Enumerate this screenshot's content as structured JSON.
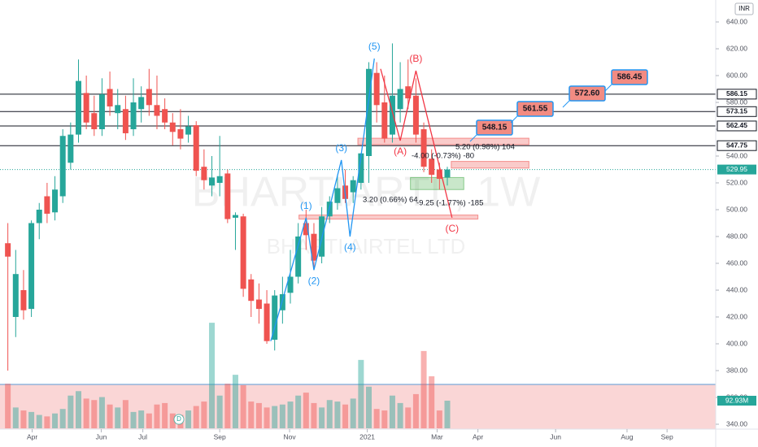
{
  "chart_data": {
    "type": "candlestick",
    "watermark": "BHARTIARTL, 1W",
    "subwatermark": "BHARTI AIRTEL LTD",
    "currency": "INR",
    "dividend_marker": "D",
    "categories": [
      null,
      null,
      null,
      null,
      null,
      null,
      null,
      null,
      null,
      null,
      null,
      null,
      null,
      null,
      null,
      null,
      null,
      null,
      null,
      null,
      null,
      null,
      null,
      null,
      null,
      null,
      null,
      null,
      null,
      null,
      null,
      null,
      null,
      null,
      null,
      null,
      null,
      null,
      null,
      null,
      null,
      null,
      null,
      null,
      null,
      null,
      null,
      null,
      null,
      null,
      null,
      null,
      null,
      null,
      null,
      null,
      null
    ],
    "open": [
      475,
      420,
      440,
      426,
      490,
      510,
      498,
      510,
      535,
      556,
      587,
      572,
      560,
      590,
      572,
      575,
      560,
      575,
      590,
      578,
      575,
      565,
      560,
      556,
      563,
      532,
      518,
      520,
      527,
      494,
      495,
      448,
      433,
      430,
      403,
      425,
      438,
      450,
      490,
      482,
      465,
      495,
      505,
      518,
      513,
      520,
      540,
      602,
      580,
      556,
      575,
      592,
      585,
      560,
      538,
      530,
      524
    ],
    "high": [
      490,
      470,
      455,
      492,
      505,
      520,
      525,
      560,
      565,
      612,
      600,
      585,
      598,
      603,
      590,
      585,
      598,
      592,
      605,
      600,
      583,
      572,
      575,
      570,
      566,
      545,
      540,
      555,
      530,
      498,
      497,
      452,
      445,
      440,
      440,
      450,
      470,
      490,
      500,
      490,
      502,
      510,
      525,
      530,
      525,
      542,
      610,
      610,
      600,
      624,
      610,
      612,
      598,
      565,
      545,
      535,
      532
    ],
    "low": [
      380,
      405,
      418,
      420,
      478,
      490,
      492,
      505,
      530,
      550,
      560,
      555,
      555,
      570,
      560,
      552,
      555,
      565,
      570,
      560,
      560,
      548,
      545,
      550,
      525,
      515,
      510,
      510,
      490,
      470,
      435,
      420,
      415,
      400,
      395,
      415,
      430,
      445,
      470,
      455,
      460,
      490,
      500,
      505,
      505,
      515,
      520,
      565,
      550,
      550,
      565,
      575,
      550,
      528,
      520,
      515,
      518
    ],
    "close": [
      465,
      452,
      425,
      490,
      500,
      497,
      515,
      555,
      556,
      596,
      565,
      560,
      586,
      577,
      578,
      557,
      580,
      584,
      578,
      570,
      565,
      558,
      553,
      562,
      529,
      522,
      524,
      525,
      493,
      496,
      441,
      432,
      426,
      402,
      436,
      437,
      450,
      480,
      481,
      462,
      495,
      506,
      516,
      508,
      522,
      542,
      605,
      578,
      553,
      585,
      590,
      583,
      556,
      532,
      526,
      523,
      529.95
    ],
    "volume": [
      150,
      70,
      60,
      55,
      45,
      40,
      50,
      65,
      110,
      125,
      100,
      95,
      105,
      80,
      70,
      95,
      55,
      60,
      50,
      80,
      85,
      50,
      45,
      60,
      75,
      90,
      355,
      110,
      150,
      180,
      145,
      90,
      85,
      70,
      75,
      80,
      90,
      110,
      120,
      85,
      70,
      95,
      90,
      80,
      100,
      230,
      140,
      65,
      60,
      110,
      85,
      70,
      115,
      260,
      175,
      60,
      92.93
    ],
    "volume_label": "92.93M",
    "up_color": "#26a69a",
    "down_color": "#ef5350",
    "xlim": [
      -1,
      90.2
    ],
    "xticks": [
      {
        "value": 3.1,
        "label": "Apr"
      },
      {
        "value": 11.9,
        "label": "Jun"
      },
      {
        "value": 17.2,
        "label": "Jul"
      },
      {
        "value": 27,
        "label": "Sep"
      },
      {
        "value": 35.9,
        "label": "Nov"
      },
      {
        "value": 45.8,
        "label": "2021"
      },
      {
        "value": 54.7,
        "label": "Mar"
      },
      {
        "value": 59.9,
        "label": "Apr"
      },
      {
        "value": 69.8,
        "label": "Jun"
      },
      {
        "value": 78.9,
        "label": "Aug"
      },
      {
        "value": 84,
        "label": "Sep"
      }
    ],
    "ylim": [
      340,
      640
    ],
    "yticks": [
      {
        "value": 340,
        "label": "340.00"
      },
      {
        "value": 360,
        "label": "360.00"
      },
      {
        "value": 380,
        "label": "380.00"
      },
      {
        "value": 400,
        "label": "400.00"
      },
      {
        "value": 420,
        "label": "420.00"
      },
      {
        "value": 440,
        "label": "440.00"
      },
      {
        "value": 460,
        "label": "460.00"
      },
      {
        "value": 480,
        "label": "480.00"
      },
      {
        "value": 500,
        "label": "500.00"
      },
      {
        "value": 520,
        "label": "520.00"
      },
      {
        "value": 540,
        "label": "540.00"
      },
      {
        "value": 560,
        "label": "560.00"
      },
      {
        "value": 580,
        "label": "580.00"
      },
      {
        "value": 600,
        "label": "600.00"
      },
      {
        "value": 620,
        "label": "620.00"
      },
      {
        "value": 640,
        "label": "640.00"
      }
    ],
    "last_price": {
      "value": 529.95,
      "label": "529.95"
    },
    "levels": [
      {
        "value": 586.15,
        "label": "586.15"
      },
      {
        "value": 573.15,
        "label": "573.15"
      },
      {
        "value": 562.45,
        "label": "562.45"
      },
      {
        "value": 547.75,
        "label": "547.75"
      }
    ],
    "targets": [
      "548.15",
      "561.55",
      "572.60",
      "586.45"
    ],
    "zones": [
      {
        "color": "#ef5350",
        "from": 44.6,
        "to": 66.4,
        "low": 548.5,
        "high": 553.3
      },
      {
        "color": "#ef5350",
        "from": 56.5,
        "to": 66.4,
        "low": 531,
        "high": 536
      },
      {
        "color": "#4caf50",
        "from": 51.3,
        "to": 58.1,
        "low": 515,
        "high": 524
      },
      {
        "color": "#ef5350",
        "from": 37.1,
        "to": 59.9,
        "low": 493,
        "high": 496
      }
    ],
    "impulse": {
      "color": "#2196f3",
      "points": [
        {
          "x": 33.5,
          "y": 402,
          "label": null
        },
        {
          "x": 38,
          "y": 494,
          "label": "(1)"
        },
        {
          "x": 39,
          "y": 455,
          "label": "(2)"
        },
        {
          "x": 42.5,
          "y": 537,
          "label": "(3)"
        },
        {
          "x": 43.6,
          "y": 480,
          "label": "(4)"
        },
        {
          "x": 46.7,
          "y": 612.7,
          "label": "(5)"
        }
      ]
    },
    "corrective": {
      "color": "#f23645",
      "points": [
        {
          "x": 47.5,
          "y": 605,
          "label": null
        },
        {
          "x": 50,
          "y": 551.5,
          "label": "(A)"
        },
        {
          "x": 52,
          "y": 603.6,
          "label": "(B)"
        },
        {
          "x": 56.6,
          "y": 494,
          "label": "(C)"
        }
      ]
    },
    "measures": [
      "5.20 (0.98%) 104",
      "-4.00 (-0.73%) -80",
      "3.20 (0.66%) 64",
      "-9.25 (-1.77%) -185"
    ]
  }
}
